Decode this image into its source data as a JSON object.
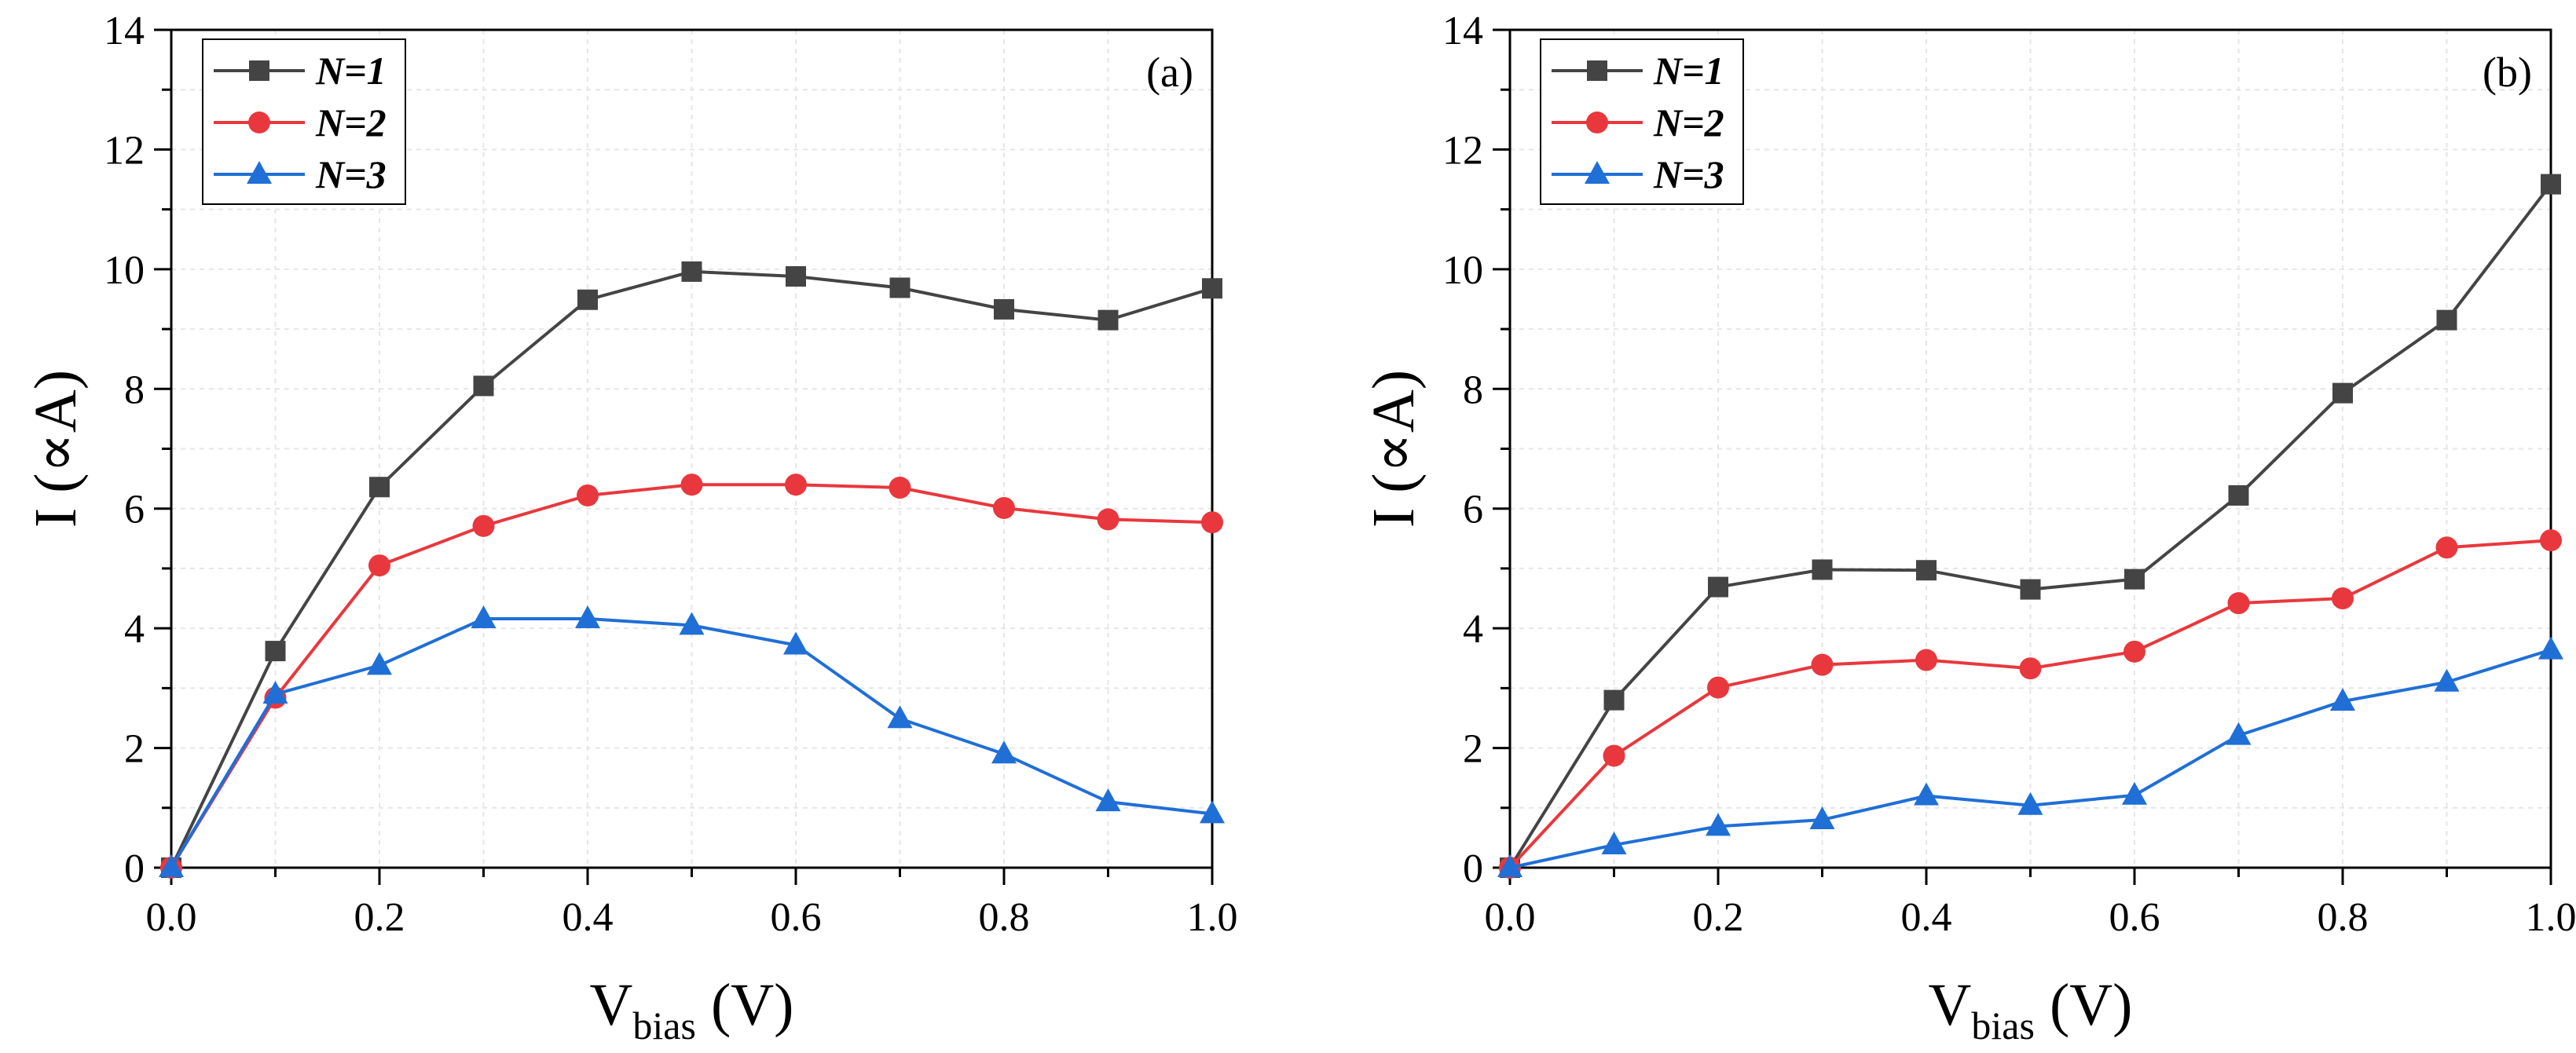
{
  "chart_data": [
    {
      "type": "line",
      "panel_label": "(a)",
      "xlabel": "V",
      "xlabel_sub": "bias",
      "xlabel_unit": " (V)",
      "ylabel": "I (∝A)",
      "xlim": [
        0,
        1.0
      ],
      "ylim": [
        0,
        14
      ],
      "x_ticks": [
        "0.0",
        "0.2",
        "0.4",
        "0.6",
        "0.8",
        "1.0"
      ],
      "y_ticks": [
        "0",
        "2",
        "4",
        "6",
        "8",
        "10",
        "12",
        "14"
      ],
      "legend_position": "top-left",
      "grid": true,
      "x": [
        0.0,
        0.1,
        0.2,
        0.3,
        0.4,
        0.5,
        0.6,
        0.7,
        0.8,
        0.9,
        1.0
      ],
      "series": [
        {
          "name": "N=1",
          "color": "#444444",
          "marker": "square",
          "values": [
            0,
            3.62,
            6.36,
            8.05,
            9.49,
            9.96,
            9.88,
            9.69,
            9.33,
            9.15,
            9.68
          ]
        },
        {
          "name": "N=2",
          "color": "#e8383d",
          "marker": "circle",
          "values": [
            0,
            2.84,
            5.05,
            5.71,
            6.22,
            6.4,
            6.4,
            6.35,
            6.01,
            5.82,
            5.77
          ]
        },
        {
          "name": "N=3",
          "color": "#1f6fd6",
          "marker": "triangle",
          "values": [
            0,
            2.9,
            3.38,
            4.16,
            4.16,
            4.05,
            3.72,
            2.49,
            1.9,
            1.1,
            0.9
          ]
        }
      ]
    },
    {
      "type": "line",
      "panel_label": "(b)",
      "xlabel": "V",
      "xlabel_sub": "bias",
      "xlabel_unit": " (V)",
      "ylabel": "I (∝A)",
      "xlim": [
        0,
        1.0
      ],
      "ylim": [
        0,
        14
      ],
      "x_ticks": [
        "0.0",
        "0.2",
        "0.4",
        "0.6",
        "0.8",
        "1.0"
      ],
      "y_ticks": [
        "0",
        "2",
        "4",
        "6",
        "8",
        "10",
        "12",
        "14"
      ],
      "legend_position": "top-left",
      "grid": true,
      "x": [
        0.0,
        0.1,
        0.2,
        0.3,
        0.4,
        0.5,
        0.6,
        0.7,
        0.8,
        0.9,
        1.0
      ],
      "series": [
        {
          "name": "N=1",
          "color": "#444444",
          "marker": "square",
          "values": [
            0,
            2.8,
            4.69,
            4.98,
            4.97,
            4.65,
            4.82,
            6.22,
            7.93,
            9.15,
            11.42
          ]
        },
        {
          "name": "N=2",
          "color": "#e8383d",
          "marker": "circle",
          "values": [
            0,
            1.87,
            3.01,
            3.39,
            3.47,
            3.33,
            3.61,
            4.42,
            4.5,
            5.35,
            5.47
          ]
        },
        {
          "name": "N=3",
          "color": "#1f6fd6",
          "marker": "triangle",
          "values": [
            0,
            0.38,
            0.69,
            0.8,
            1.2,
            1.04,
            1.21,
            2.21,
            2.78,
            3.1,
            3.64
          ]
        }
      ]
    }
  ]
}
